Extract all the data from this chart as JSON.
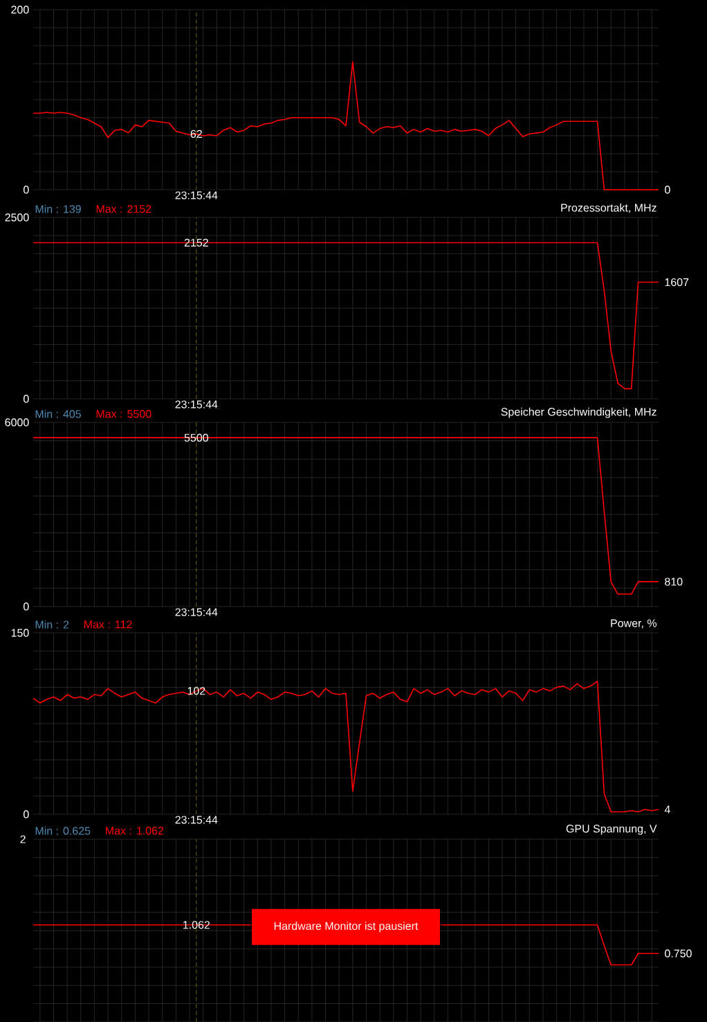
{
  "chart_data": [
    {
      "type": "line",
      "categories": [
        null,
        null,
        null,
        null,
        null,
        null,
        null,
        null,
        null,
        null,
        null,
        null,
        null,
        null,
        null,
        null,
        null,
        null,
        null,
        null,
        null,
        null,
        null,
        null,
        null,
        null,
        null,
        null,
        null,
        null,
        null,
        null,
        null,
        null,
        null,
        null,
        null,
        null,
        null,
        null,
        null,
        null,
        null,
        null,
        null,
        null,
        null,
        null,
        null,
        null,
        null,
        null,
        null,
        null,
        null,
        null,
        null,
        null,
        null,
        null,
        null,
        null,
        null,
        null,
        null,
        null,
        null,
        null,
        null,
        null,
        null,
        null,
        null,
        null,
        null,
        null,
        null,
        null,
        null,
        null,
        null,
        null,
        null,
        null,
        null,
        null,
        null,
        null,
        null,
        null,
        null,
        null,
        null
      ],
      "color": "#ff0000",
      "values": [
        85,
        85,
        86,
        85,
        86,
        85,
        83,
        80,
        78,
        74,
        70,
        58,
        66,
        67,
        63,
        72,
        70,
        77,
        76,
        75,
        74,
        65,
        63,
        61,
        62,
        60,
        61,
        60,
        66,
        69,
        64,
        66,
        71,
        70,
        73,
        74,
        77,
        78,
        80,
        80,
        80,
        80,
        80,
        80,
        80,
        78,
        71,
        142,
        75,
        70,
        63,
        68,
        70,
        69,
        71,
        63,
        67,
        64,
        68,
        65,
        66,
        64,
        67,
        65,
        66,
        67,
        65,
        60,
        68,
        72,
        77,
        68,
        59,
        62,
        63,
        64,
        69,
        72,
        76,
        76,
        76,
        76,
        76,
        76,
        0,
        0,
        0,
        0,
        0,
        0,
        0,
        0,
        0
      ],
      "value_labels": [
        null,
        null,
        null,
        null,
        null,
        null,
        null,
        null,
        null,
        null,
        null,
        null,
        null,
        null,
        null,
        null,
        null,
        null,
        null,
        null,
        null,
        null,
        null,
        null,
        "62",
        null,
        null,
        null,
        null,
        null,
        null,
        null,
        null,
        null,
        null,
        null,
        null,
        null,
        null,
        null,
        null,
        null,
        null,
        null,
        null,
        null,
        null,
        null,
        null,
        null,
        null,
        null,
        null,
        null,
        null,
        null,
        null,
        null,
        null,
        null,
        null,
        null,
        null,
        null,
        null,
        null,
        null,
        null,
        null,
        null,
        null,
        null,
        null,
        null,
        null,
        null,
        null,
        null,
        null,
        null,
        null,
        null,
        null,
        null,
        null,
        null,
        null,
        null,
        null,
        null,
        null,
        null,
        "0"
      ],
      "ylim": [
        0,
        200
      ],
      "yticks": [
        0,
        200
      ],
      "grid": true,
      "xlabel": "23:15:44"
    },
    {
      "type": "line",
      "title": "Prozessortakt, MHz",
      "annotations": [
        "Min : 139",
        "Max : 2152"
      ],
      "categories": [
        null,
        null,
        null,
        null,
        null,
        null,
        null,
        null,
        null,
        null,
        null,
        null,
        null,
        null,
        null,
        null,
        null,
        null,
        null,
        null,
        null,
        null,
        null,
        null,
        null,
        null,
        null,
        null,
        null,
        null,
        null,
        null,
        null,
        null,
        null,
        null,
        null,
        null,
        null,
        null,
        null,
        null,
        null,
        null,
        null,
        null,
        null,
        null,
        null,
        null,
        null,
        null,
        null,
        null,
        null,
        null,
        null,
        null,
        null,
        null,
        null,
        null,
        null,
        null,
        null,
        null,
        null,
        null,
        null,
        null,
        null,
        null,
        null,
        null,
        null,
        null,
        null,
        null,
        null,
        null,
        null,
        null,
        null,
        null,
        null,
        null,
        null,
        null,
        null,
        null,
        null,
        null,
        null
      ],
      "color": "#ff0000",
      "values": [
        2152,
        2152,
        2152,
        2152,
        2152,
        2152,
        2152,
        2152,
        2152,
        2152,
        2152,
        2152,
        2152,
        2152,
        2152,
        2152,
        2152,
        2152,
        2152,
        2152,
        2152,
        2152,
        2152,
        2152,
        2152,
        2152,
        2152,
        2152,
        2152,
        2152,
        2152,
        2152,
        2152,
        2152,
        2152,
        2152,
        2152,
        2152,
        2152,
        2152,
        2152,
        2152,
        2152,
        2152,
        2152,
        2152,
        2152,
        2152,
        2152,
        2152,
        2152,
        2152,
        2152,
        2152,
        2152,
        2152,
        2152,
        2152,
        2152,
        2152,
        2152,
        2152,
        2152,
        2152,
        2152,
        2152,
        2152,
        2152,
        2152,
        2152,
        2152,
        2152,
        2152,
        2152,
        2152,
        2152,
        2152,
        2152,
        2152,
        2152,
        2152,
        2152,
        2152,
        2152,
        1489,
        662,
        216,
        139,
        139,
        1607,
        1607,
        1607,
        1607
      ],
      "value_labels": [
        null,
        null,
        null,
        null,
        null,
        null,
        null,
        null,
        null,
        null,
        null,
        null,
        null,
        null,
        null,
        null,
        null,
        null,
        null,
        null,
        null,
        null,
        null,
        null,
        "2152",
        null,
        null,
        null,
        null,
        null,
        null,
        null,
        null,
        null,
        null,
        null,
        null,
        null,
        null,
        null,
        null,
        null,
        null,
        null,
        null,
        null,
        null,
        null,
        null,
        null,
        null,
        null,
        null,
        null,
        null,
        null,
        null,
        null,
        null,
        null,
        null,
        null,
        null,
        null,
        null,
        null,
        null,
        null,
        null,
        null,
        null,
        null,
        null,
        null,
        null,
        null,
        null,
        null,
        null,
        null,
        null,
        null,
        null,
        null,
        null,
        null,
        null,
        null,
        null,
        null,
        null,
        null,
        "1607"
      ],
      "ylim": [
        0,
        2500
      ],
      "yticks": [
        0,
        2500
      ],
      "grid": true,
      "xlabel": "23:15:44"
    },
    {
      "type": "line",
      "title": "Speicher Geschwindigkeit, MHz",
      "annotations": [
        "Min : 405",
        "Max : 5500"
      ],
      "categories": [
        null,
        null,
        null,
        null,
        null,
        null,
        null,
        null,
        null,
        null,
        null,
        null,
        null,
        null,
        null,
        null,
        null,
        null,
        null,
        null,
        null,
        null,
        null,
        null,
        null,
        null,
        null,
        null,
        null,
        null,
        null,
        null,
        null,
        null,
        null,
        null,
        null,
        null,
        null,
        null,
        null,
        null,
        null,
        null,
        null,
        null,
        null,
        null,
        null,
        null,
        null,
        null,
        null,
        null,
        null,
        null,
        null,
        null,
        null,
        null,
        null,
        null,
        null,
        null,
        null,
        null,
        null,
        null,
        null,
        null,
        null,
        null,
        null,
        null,
        null,
        null,
        null,
        null,
        null,
        null,
        null,
        null,
        null,
        null,
        null,
        null,
        null,
        null,
        null,
        null,
        null,
        null,
        null
      ],
      "color": "#ff0000",
      "values": [
        5500,
        5500,
        5500,
        5500,
        5500,
        5500,
        5500,
        5500,
        5500,
        5500,
        5500,
        5500,
        5500,
        5500,
        5500,
        5500,
        5500,
        5500,
        5500,
        5500,
        5500,
        5500,
        5500,
        5500,
        5500,
        5500,
        5500,
        5500,
        5500,
        5500,
        5500,
        5500,
        5500,
        5500,
        5500,
        5500,
        5500,
        5500,
        5500,
        5500,
        5500,
        5500,
        5500,
        5500,
        5500,
        5500,
        5500,
        5500,
        5500,
        5500,
        5500,
        5500,
        5500,
        5500,
        5500,
        5500,
        5500,
        5500,
        5500,
        5500,
        5500,
        5500,
        5500,
        5500,
        5500,
        5500,
        5500,
        5500,
        5500,
        5500,
        5500,
        5500,
        5500,
        5500,
        5500,
        5500,
        5500,
        5500,
        5500,
        5500,
        5500,
        5500,
        5500,
        5500,
        3100,
        810,
        405,
        405,
        405,
        810,
        810,
        810,
        810
      ],
      "value_labels": [
        null,
        null,
        null,
        null,
        null,
        null,
        null,
        null,
        null,
        null,
        null,
        null,
        null,
        null,
        null,
        null,
        null,
        null,
        null,
        null,
        null,
        null,
        null,
        null,
        "5500",
        null,
        null,
        null,
        null,
        null,
        null,
        null,
        null,
        null,
        null,
        null,
        null,
        null,
        null,
        null,
        null,
        null,
        null,
        null,
        null,
        null,
        null,
        null,
        null,
        null,
        null,
        null,
        null,
        null,
        null,
        null,
        null,
        null,
        null,
        null,
        null,
        null,
        null,
        null,
        null,
        null,
        null,
        null,
        null,
        null,
        null,
        null,
        null,
        null,
        null,
        null,
        null,
        null,
        null,
        null,
        null,
        null,
        null,
        null,
        null,
        null,
        null,
        null,
        null,
        null,
        null,
        null,
        "810"
      ],
      "ylim": [
        0,
        6000
      ],
      "yticks": [
        0,
        6000
      ],
      "grid": true,
      "xlabel": "23:15:44"
    },
    {
      "type": "line",
      "title": "Power, %",
      "annotations": [
        "Min : 2",
        "Max : 112"
      ],
      "categories": [
        null,
        null,
        null,
        null,
        null,
        null,
        null,
        null,
        null,
        null,
        null,
        null,
        null,
        null,
        null,
        null,
        null,
        null,
        null,
        null,
        null,
        null,
        null,
        null,
        null,
        null,
        null,
        null,
        null,
        null,
        null,
        null,
        null,
        null,
        null,
        null,
        null,
        null,
        null,
        null,
        null,
        null,
        null,
        null,
        null,
        null,
        null,
        null,
        null,
        null,
        null,
        null,
        null,
        null,
        null,
        null,
        null,
        null,
        null,
        null,
        null,
        null,
        null,
        null,
        null,
        null,
        null,
        null,
        null,
        null,
        null,
        null,
        null,
        null,
        null,
        null,
        null,
        null,
        null,
        null,
        null,
        null,
        null,
        null,
        null,
        null,
        null,
        null,
        null,
        null,
        null,
        null,
        null
      ],
      "color": "#ff0000",
      "values": [
        96,
        92,
        95,
        97,
        94,
        99,
        96,
        97,
        95,
        99,
        98,
        104,
        100,
        97,
        99,
        101,
        96,
        94,
        92,
        97,
        99,
        100,
        101,
        99,
        102,
        104,
        99,
        101,
        97,
        103,
        98,
        100,
        96,
        101,
        99,
        95,
        97,
        101,
        100,
        98,
        99,
        102,
        97,
        104,
        100,
        99,
        100,
        19,
        59,
        98,
        100,
        96,
        99,
        101,
        95,
        93,
        104,
        100,
        103,
        99,
        101,
        104,
        98,
        102,
        100,
        99,
        103,
        101,
        104,
        97,
        102,
        100,
        94,
        103,
        101,
        104,
        102,
        105,
        106,
        103,
        108,
        104,
        106,
        110,
        17,
        2,
        2,
        2,
        3,
        2,
        4,
        3,
        4
      ],
      "value_labels": [
        null,
        null,
        null,
        null,
        null,
        null,
        null,
        null,
        null,
        null,
        null,
        null,
        null,
        null,
        null,
        null,
        null,
        null,
        null,
        null,
        null,
        null,
        null,
        null,
        "102",
        null,
        null,
        null,
        null,
        null,
        null,
        null,
        null,
        null,
        null,
        null,
        null,
        null,
        null,
        null,
        null,
        null,
        null,
        null,
        null,
        null,
        null,
        null,
        null,
        null,
        null,
        null,
        null,
        null,
        null,
        null,
        null,
        null,
        null,
        null,
        null,
        null,
        null,
        null,
        null,
        null,
        null,
        null,
        null,
        null,
        null,
        null,
        null,
        null,
        null,
        null,
        null,
        null,
        null,
        null,
        null,
        null,
        null,
        null,
        null,
        null,
        null,
        null,
        null,
        null,
        null,
        null,
        "4"
      ],
      "ylim": [
        0,
        150
      ],
      "yticks": [
        0,
        150
      ],
      "grid": true,
      "xlabel": "23:15:44"
    },
    {
      "type": "line",
      "title": "GPU Spannung, V",
      "annotations": [
        "Min : 0.625",
        "Max : 1.062",
        "Hardware Monitor ist pausiert",
        "2"
      ],
      "categories": [
        null,
        null,
        null,
        null,
        null,
        null,
        null,
        null,
        null,
        null,
        null,
        null,
        null,
        null,
        null,
        null,
        null,
        null,
        null,
        null,
        null,
        null,
        null,
        null,
        null,
        null,
        null,
        null,
        null,
        null,
        null,
        null,
        null,
        null,
        null,
        null,
        null,
        null,
        null,
        null,
        null,
        null,
        null,
        null,
        null,
        null,
        null,
        null,
        null,
        null,
        null,
        null,
        null,
        null,
        null,
        null,
        null,
        null,
        null,
        null,
        null,
        null,
        null,
        null,
        null,
        null,
        null,
        null,
        null,
        null,
        null,
        null,
        null,
        null,
        null,
        null,
        null,
        null,
        null,
        null,
        null,
        null,
        null,
        null,
        null,
        null,
        null,
        null,
        null,
        null,
        null,
        null,
        null
      ],
      "color": "#ff0000",
      "values": [
        1.062,
        1.062,
        1.062,
        1.062,
        1.062,
        1.062,
        1.062,
        1.062,
        1.062,
        1.062,
        1.062,
        1.062,
        1.062,
        1.062,
        1.062,
        1.062,
        1.062,
        1.062,
        1.062,
        1.062,
        1.062,
        1.062,
        1.062,
        1.062,
        1.062,
        1.062,
        1.062,
        1.062,
        1.062,
        1.062,
        1.062,
        1.062,
        1.062,
        null,
        null,
        null,
        null,
        null,
        null,
        null,
        null,
        null,
        null,
        null,
        null,
        null,
        null,
        null,
        null,
        null,
        null,
        null,
        null,
        null,
        null,
        null,
        null,
        null,
        null,
        null,
        1.062,
        1.062,
        1.062,
        1.062,
        1.062,
        1.062,
        1.062,
        1.062,
        1.062,
        1.062,
        1.062,
        1.062,
        1.062,
        1.062,
        1.062,
        1.062,
        1.062,
        1.062,
        1.062,
        1.062,
        1.062,
        1.062,
        1.062,
        1.062,
        0.836,
        0.625,
        0.625,
        0.625,
        0.625,
        0.75,
        0.75,
        0.75,
        0.75
      ],
      "value_labels": [
        null,
        null,
        null,
        null,
        null,
        null,
        null,
        null,
        null,
        null,
        null,
        null,
        null,
        null,
        null,
        null,
        null,
        null,
        null,
        null,
        null,
        null,
        null,
        null,
        "1.062",
        null,
        null,
        null,
        null,
        null,
        null,
        null,
        null,
        null,
        null,
        null,
        null,
        null,
        null,
        null,
        null,
        null,
        null,
        null,
        null,
        null,
        null,
        null,
        null,
        null,
        null,
        null,
        null,
        null,
        null,
        null,
        null,
        null,
        null,
        null,
        null,
        null,
        null,
        null,
        null,
        null,
        null,
        null,
        null,
        null,
        null,
        null,
        null,
        null,
        null,
        null,
        null,
        null,
        null,
        null,
        null,
        null,
        null,
        null,
        null,
        null,
        null,
        null,
        null,
        null,
        null,
        null,
        "0.750"
      ],
      "ylim": [
        0,
        2
      ],
      "grid": true
    }
  ]
}
